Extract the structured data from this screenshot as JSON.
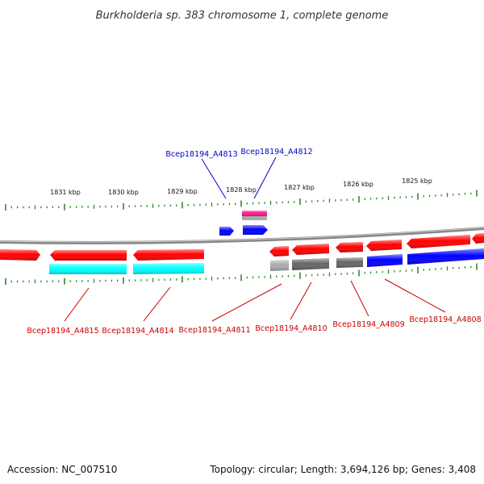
{
  "title": "Burkholderia sp. 383 chromosome 1, complete genome",
  "footer": {
    "accession": "Accession: NC_007510",
    "stats": "Topology: circular; Length: 3,694,126 bp; Genes: 3,408"
  },
  "ruler": {
    "labels": [
      "1831 kbp",
      "1830 kbp",
      "1829 kbp",
      "1828 kbp",
      "1827 kbp",
      "1826 kbp",
      "1825 kbp"
    ]
  },
  "colors": {
    "red": "#ff0000",
    "cyan": "#00ffff",
    "blue": "#0000ff",
    "magenta": "#ff1493",
    "dark_gray": "#666666",
    "light_gray": "#aaaaaa",
    "tick_green": "#2e8b2e",
    "label_blue": "#0000cc",
    "label_red": "#cc0000",
    "backbone": "#888888"
  },
  "gene_labels": [
    {
      "text": "Bcep18194_A4813",
      "color": "label_blue"
    },
    {
      "text": "Bcep18194_A4812",
      "color": "label_blue"
    },
    {
      "text": "Bcep18194_A4815",
      "color": "label_red"
    },
    {
      "text": "Bcep18194_A4814",
      "color": "label_red"
    },
    {
      "text": "Bcep18194_A4811",
      "color": "label_red"
    },
    {
      "text": "Bcep18194_A4810",
      "color": "label_red"
    },
    {
      "text": "Bcep18194_A4809",
      "color": "label_red"
    },
    {
      "text": "Bcep18194_A4808",
      "color": "label_red"
    }
  ],
  "features": [
    {
      "name": "gene-red-1",
      "color": "red",
      "dir": "right"
    },
    {
      "name": "gene-red-2",
      "color": "red",
      "dir": "left"
    },
    {
      "name": "gene-red-3",
      "color": "red",
      "dir": "left"
    },
    {
      "name": "gene-cyan-1",
      "color": "cyan",
      "dir": "none"
    },
    {
      "name": "gene-cyan-2",
      "color": "cyan",
      "dir": "none"
    },
    {
      "name": "gene-blue-1",
      "color": "blue",
      "dir": "right"
    },
    {
      "name": "gene-blue-2",
      "color": "blue",
      "dir": "right"
    },
    {
      "name": "gene-magenta",
      "color": "magenta",
      "dir": "none"
    },
    {
      "name": "gene-gray-small",
      "color": "light_gray",
      "dir": "none"
    },
    {
      "name": "gene-red-4",
      "color": "red",
      "dir": "left"
    },
    {
      "name": "gene-red-5",
      "color": "red",
      "dir": "left"
    },
    {
      "name": "gene-red-6",
      "color": "red",
      "dir": "left"
    },
    {
      "name": "gene-red-7",
      "color": "red",
      "dir": "left"
    },
    {
      "name": "gene-red-8",
      "color": "red",
      "dir": "left"
    },
    {
      "name": "gene-red-9",
      "color": "red",
      "dir": "left"
    },
    {
      "name": "gene-lightgray-1",
      "color": "light_gray",
      "dir": "none"
    },
    {
      "name": "gene-darkgray-1",
      "color": "dark_gray",
      "dir": "none"
    },
    {
      "name": "gene-darkgray-2",
      "color": "dark_gray",
      "dir": "none"
    },
    {
      "name": "gene-blue-3",
      "color": "blue",
      "dir": "none"
    },
    {
      "name": "gene-blue-4",
      "color": "blue",
      "dir": "none"
    }
  ]
}
